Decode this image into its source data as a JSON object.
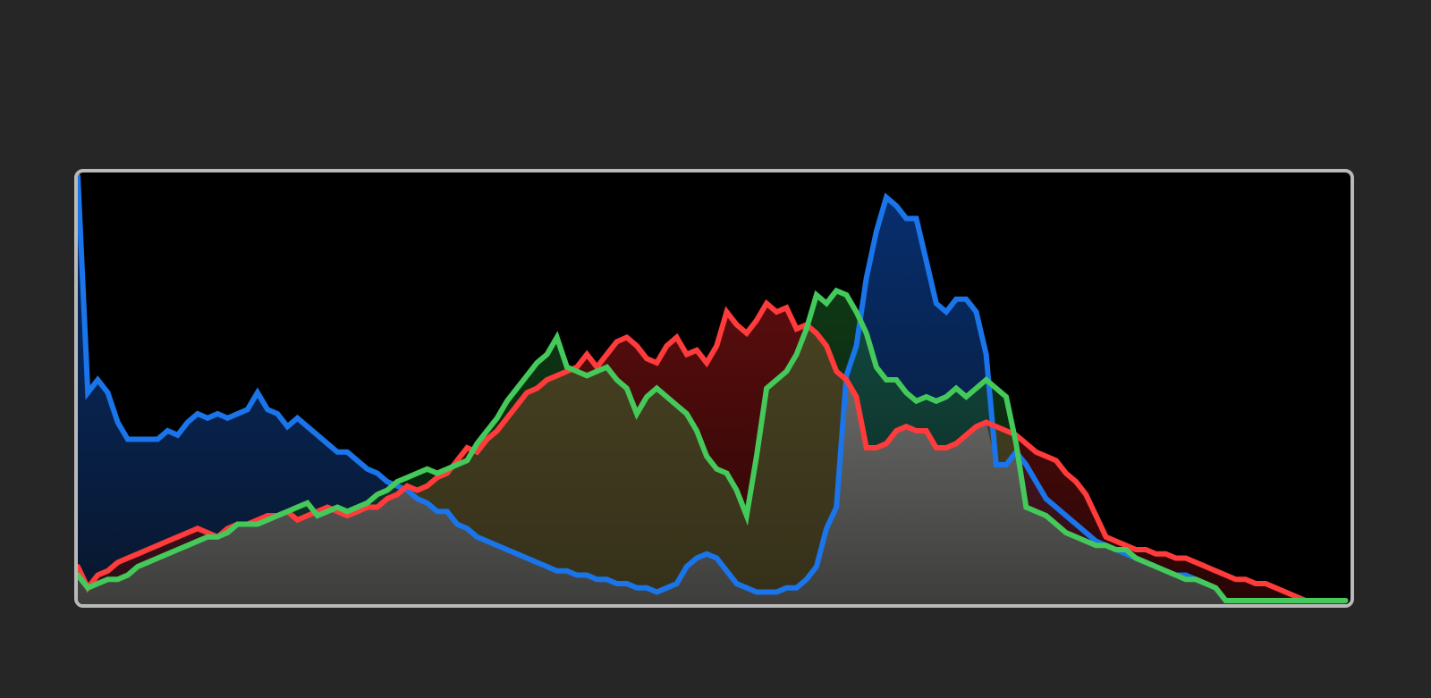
{
  "chart_data": {
    "type": "area",
    "x": [
      0,
      2,
      4,
      6,
      8,
      10,
      12,
      14,
      16,
      18,
      20,
      22,
      24,
      26,
      28,
      30,
      32,
      34,
      36,
      38,
      40,
      42,
      44,
      46,
      48,
      50,
      52,
      54,
      56,
      58,
      60,
      62,
      64,
      66,
      68,
      70,
      72,
      74,
      76,
      78,
      80,
      82,
      84,
      86,
      88,
      90,
      92,
      94,
      96,
      98,
      100,
      102,
      104,
      106,
      108,
      110,
      112,
      114,
      116,
      118,
      120,
      122,
      124,
      126,
      128,
      130,
      132,
      134,
      136,
      138,
      140,
      142,
      144,
      146,
      148,
      150,
      152,
      154,
      156,
      158,
      160,
      162,
      164,
      166,
      168,
      170,
      172,
      174,
      176,
      178,
      180,
      182,
      184,
      186,
      188,
      190,
      192,
      194,
      196,
      198,
      200,
      202,
      204,
      206,
      208,
      210,
      212,
      214,
      216,
      218,
      220,
      222,
      224,
      226,
      228,
      230,
      232,
      234,
      236,
      238,
      240,
      242,
      244,
      246,
      248,
      250,
      252,
      254
    ],
    "xlim": [
      0,
      255
    ],
    "ylim": [
      0,
      100
    ],
    "grid": false,
    "colors": {
      "red": "#ff3b3b",
      "green": "#44c95a",
      "blue": "#1a74ea",
      "overlap": "#8a8a8a",
      "background": "#000000",
      "frame": "#b9b9b9",
      "page": "#262626"
    },
    "series": [
      {
        "channel": "red",
        "values": [
          8,
          3,
          6,
          7,
          9,
          10,
          11,
          12,
          13,
          14,
          15,
          16,
          17,
          16,
          15,
          17,
          18,
          18,
          19,
          20,
          20,
          21,
          19,
          20,
          21,
          22,
          21,
          20,
          21,
          22,
          22,
          24,
          25,
          27,
          26,
          27,
          29,
          30,
          33,
          36,
          35,
          38,
          40,
          43,
          46,
          49,
          50,
          52,
          53,
          54,
          55,
          58,
          55,
          58,
          61,
          62,
          60,
          57,
          56,
          60,
          62,
          58,
          59,
          56,
          60,
          68,
          65,
          63,
          66,
          70,
          68,
          69,
          64,
          65,
          63,
          60,
          54,
          52,
          48,
          36,
          36,
          37,
          40,
          41,
          40,
          40,
          36,
          36,
          37,
          39,
          41,
          42,
          41,
          40,
          39,
          37,
          35,
          34,
          33,
          30,
          28,
          25,
          20,
          15,
          14,
          13,
          12,
          12,
          11,
          11,
          10,
          10,
          9,
          8,
          7,
          6,
          5,
          5,
          4,
          4,
          3,
          2,
          1,
          0,
          0,
          0,
          0,
          0
        ]
      },
      {
        "channel": "green",
        "values": [
          6,
          3,
          4,
          5,
          5,
          6,
          8,
          9,
          10,
          11,
          12,
          13,
          14,
          15,
          15,
          16,
          18,
          18,
          18,
          19,
          20,
          21,
          22,
          23,
          20,
          21,
          22,
          21,
          22,
          23,
          25,
          26,
          28,
          29,
          30,
          31,
          30,
          31,
          32,
          33,
          37,
          40,
          43,
          47,
          50,
          53,
          56,
          58,
          62,
          55,
          54,
          53,
          54,
          55,
          52,
          50,
          44,
          48,
          50,
          48,
          46,
          44,
          40,
          34,
          31,
          30,
          26,
          20,
          34,
          50,
          52,
          54,
          58,
          64,
          72,
          70,
          73,
          72,
          68,
          63,
          55,
          52,
          52,
          49,
          47,
          48,
          47,
          48,
          50,
          48,
          50,
          52,
          50,
          48,
          37,
          22,
          21,
          20,
          18,
          16,
          15,
          14,
          13,
          13,
          12,
          12,
          10,
          9,
          8,
          7,
          6,
          5,
          5,
          4,
          3,
          0,
          0,
          0,
          0,
          0,
          0,
          0,
          0,
          0,
          0,
          0,
          0,
          0
        ]
      },
      {
        "channel": "blue",
        "values": [
          100,
          49,
          52,
          49,
          42,
          38,
          38,
          38,
          38,
          40,
          39,
          42,
          44,
          43,
          44,
          43,
          44,
          45,
          49,
          45,
          44,
          41,
          43,
          41,
          39,
          37,
          35,
          35,
          33,
          31,
          30,
          28,
          27,
          26,
          24,
          23,
          21,
          21,
          18,
          17,
          15,
          14,
          13,
          12,
          11,
          10,
          9,
          8,
          7,
          7,
          6,
          6,
          5,
          5,
          4,
          4,
          3,
          3,
          2,
          3,
          4,
          8,
          10,
          11,
          10,
          7,
          4,
          3,
          2,
          2,
          2,
          3,
          3,
          5,
          8,
          17,
          22,
          53,
          60,
          76,
          87,
          95,
          93,
          90,
          90,
          80,
          70,
          68,
          71,
          71,
          68,
          58,
          32,
          32,
          35,
          32,
          28,
          24,
          22,
          20,
          18,
          16,
          14,
          13,
          12,
          11,
          10,
          9,
          8,
          7,
          6,
          6,
          5,
          4,
          3,
          0,
          0,
          0,
          0,
          0,
          0,
          0,
          0,
          0,
          0,
          0,
          0,
          0
        ]
      }
    ]
  }
}
